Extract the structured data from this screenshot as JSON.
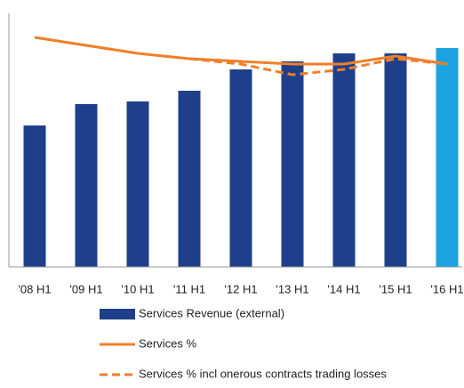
{
  "chart_data": {
    "type": "bar_line",
    "categories": [
      "'08 H1",
      "'09 H1",
      "'10 H1",
      "'11 H1",
      "'12 H1",
      "'13 H1",
      "'14 H1",
      "'15 H1",
      "'16 H1"
    ],
    "ylim": [
      0,
      100
    ],
    "series": [
      {
        "name": "Services Revenue (external)",
        "kind": "bar",
        "color": "#1f3f8a",
        "colors": [
          "#1f3f8a",
          "#1f3f8a",
          "#1f3f8a",
          "#1f3f8a",
          "#1f3f8a",
          "#1f3f8a",
          "#1f3f8a",
          "#1f3f8a",
          "#1aa3e0"
        ],
        "values": [
          53,
          61,
          62,
          66,
          74,
          77,
          80,
          80,
          82
        ]
      },
      {
        "name": "Services %",
        "kind": "line",
        "color": "#f07f2a",
        "dashed": false,
        "values": [
          86,
          83,
          80,
          78,
          77,
          76,
          76,
          79,
          76
        ]
      },
      {
        "name": "Services % incl onerous contracts trading losses",
        "kind": "line",
        "color": "#f07f2a",
        "dashed": true,
        "values": [
          null,
          null,
          null,
          78,
          76,
          72,
          74,
          78,
          76
        ]
      }
    ]
  }
}
